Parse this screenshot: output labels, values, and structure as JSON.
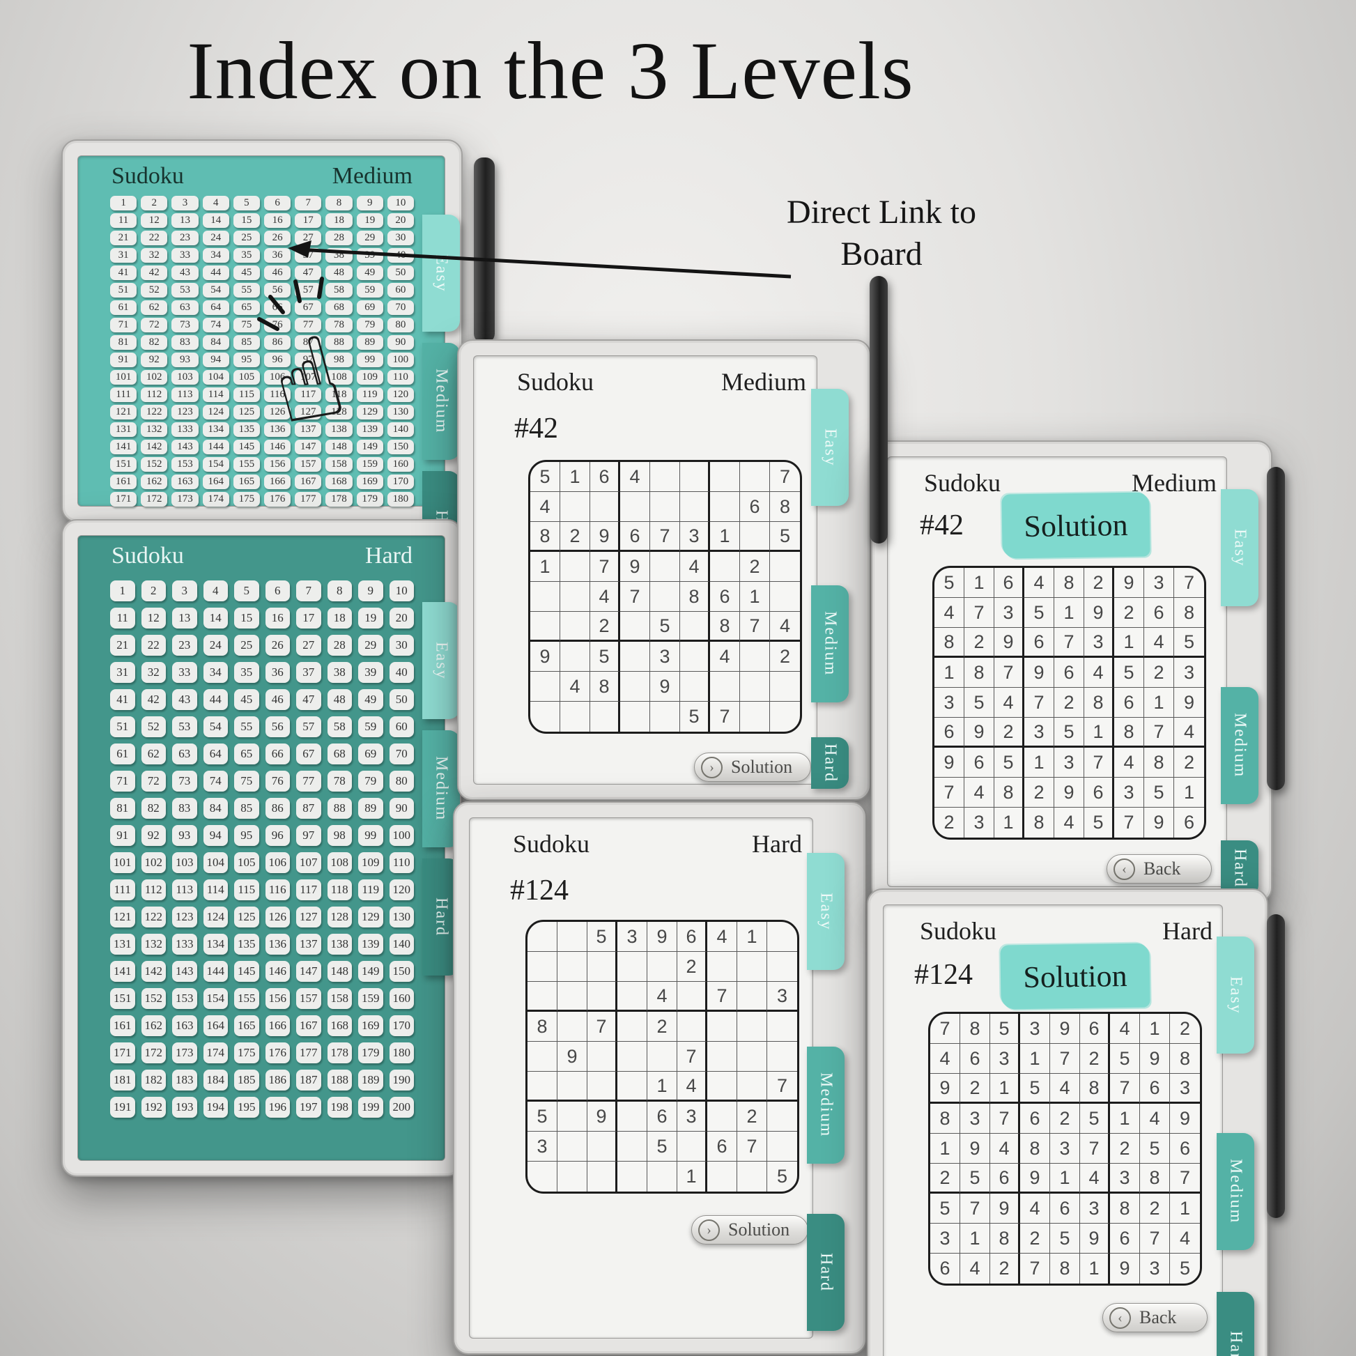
{
  "title": "Index on the 3 Levels",
  "annotation": {
    "line1": "Direct Link to",
    "line2": "Board",
    "target_cell": "36"
  },
  "tabs": {
    "easy": "Easy",
    "medium": "Medium",
    "hard": "Hard"
  },
  "colors": {
    "teal_screen_medium": "#5fbdb2",
    "teal_screen_hard": "#43968b",
    "tab_easy": "#8fdcd2",
    "tab_medium": "#54b2a6",
    "tab_hard": "#3a8d82",
    "solution_highlight": "#7fd9ce",
    "paper": "#f3f3f1"
  },
  "devices": {
    "medium_index": {
      "app": "Sudoku",
      "level": "Medium",
      "index_from": 1,
      "index_to": 180,
      "columns": 10
    },
    "hard_index": {
      "app": "Sudoku",
      "level": "Hard",
      "index_from": 1,
      "index_to": 200,
      "columns": 10
    },
    "medium_puzzle": {
      "app": "Sudoku",
      "level": "Medium",
      "number": "#42",
      "action": {
        "label": "Solution",
        "icon": "chevron-right-icon",
        "glyph": "›"
      },
      "grid": [
        "5164....7",
        "4......68",
        "8296731.5",
        "1.79.4.2.",
        "..47.861.",
        "..2.5.874",
        "9.5.3.4.2",
        ".48.9....",
        ".....57.."
      ]
    },
    "hard_puzzle": {
      "app": "Sudoku",
      "level": "Hard",
      "number": "#124",
      "action": {
        "label": "Solution",
        "icon": "chevron-right-icon",
        "glyph": "›"
      },
      "grid": [
        "..539641.",
        ".....2...",
        "....4.7.3",
        "8.7.2....",
        ".9...7...",
        "....14..7",
        "5.9.63.2.",
        "3...5.67.",
        ".....1..5"
      ]
    },
    "medium_solution": {
      "app": "Sudoku",
      "level": "Medium",
      "number": "#42",
      "heading": "Solution",
      "action": {
        "label": "Back",
        "icon": "chevron-left-icon",
        "glyph": "‹"
      },
      "grid": [
        "516482937",
        "473519268",
        "829673145",
        "187964523",
        "354728619",
        "692351874",
        "965137482",
        "748296351",
        "231845796"
      ]
    },
    "hard_solution": {
      "app": "Sudoku",
      "level": "Hard",
      "number": "#124",
      "heading": "Solution",
      "action": {
        "label": "Back",
        "icon": "chevron-left-icon",
        "glyph": "‹"
      },
      "grid": [
        "785396412",
        "463172598",
        "921548763",
        "837625149",
        "194837256",
        "256914387",
        "579463821",
        "318259674",
        "642781935"
      ]
    }
  }
}
